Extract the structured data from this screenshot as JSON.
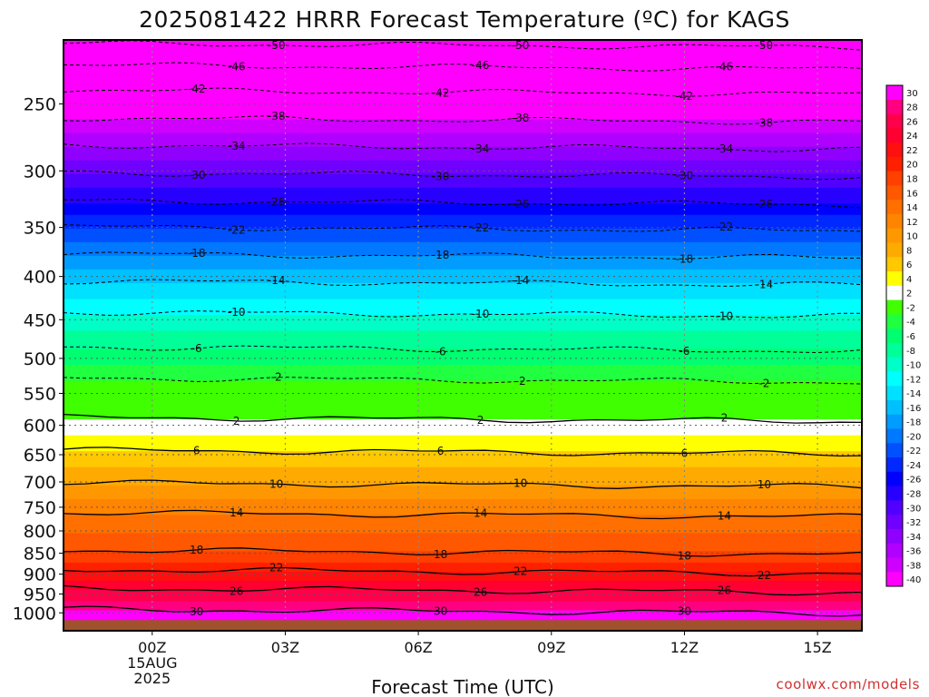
{
  "chart_data": {
    "type": "heatmap",
    "title": "2025081422 HRRR Forecast Temperature (ºC) for KAGS",
    "xlabel": "Forecast Time (UTC)",
    "ylabel": "",
    "x_ticks": [
      {
        "hour": 0,
        "lines": [
          "00Z",
          "15AUG",
          "2025"
        ]
      },
      {
        "hour": 3,
        "lines": [
          "03Z"
        ]
      },
      {
        "hour": 6,
        "lines": [
          "06Z"
        ]
      },
      {
        "hour": 9,
        "lines": [
          "09Z"
        ]
      },
      {
        "hour": 12,
        "lines": [
          "12Z"
        ]
      },
      {
        "hour": 15,
        "lines": [
          "15Z"
        ]
      }
    ],
    "x_range_hours": [
      -2,
      16
    ],
    "y_scale": "log",
    "y_range_hPa": [
      1050,
      210
    ],
    "y_ticks": [
      250,
      300,
      350,
      400,
      450,
      500,
      550,
      600,
      650,
      700,
      750,
      800,
      850,
      900,
      950,
      1000
    ],
    "grid": true,
    "colorbar": {
      "placement": "right",
      "labels": [
        "30",
        "28",
        "26",
        "24",
        "22",
        "20",
        "18",
        "16",
        "14",
        "12",
        "10",
        "8",
        "6",
        "4",
        "2",
        "-2",
        "-4",
        "-6",
        "-8",
        "-10",
        "-12",
        "-14",
        "-16",
        "-18",
        "-20",
        "-22",
        "-24",
        "-26",
        "-28",
        "-30",
        "-32",
        "-34",
        "-36",
        "-38",
        "-40"
      ],
      "colors": [
        "#ff00ff",
        "#ff0080",
        "#ff004a",
        "#ff0030",
        "#ff1010",
        "#ff2000",
        "#ff4000",
        "#ff5800",
        "#ff7000",
        "#ff8400",
        "#ff9800",
        "#ffaa00",
        "#ffc800",
        "#ffff00",
        "#ffffff",
        "#40ff00",
        "#20ff40",
        "#00ff70",
        "#00ff98",
        "#00ffc8",
        "#00ffff",
        "#00e0ff",
        "#00c0ff",
        "#009cff",
        "#0078ff",
        "#0050ff",
        "#0028ff",
        "#0000ff",
        "#2800ff",
        "#5000ff",
        "#7000ff",
        "#9000ff",
        "#b000ff",
        "#d000ff",
        "#ff00ff"
      ]
    },
    "isotherms": [
      {
        "value": 30,
        "pressure_hPa": 995,
        "label": "30"
      },
      {
        "value": 26,
        "pressure_hPa": 940,
        "label": "26"
      },
      {
        "value": 22,
        "pressure_hPa": 893,
        "label": "22"
      },
      {
        "value": 18,
        "pressure_hPa": 847,
        "label": "18"
      },
      {
        "value": 14,
        "pressure_hPa": 765,
        "label": "14"
      },
      {
        "value": 10,
        "pressure_hPa": 705,
        "label": "10"
      },
      {
        "value": 6,
        "pressure_hPa": 645,
        "label": "6"
      },
      {
        "value": 2,
        "pressure_hPa": 590,
        "label": "2"
      },
      {
        "value": -2,
        "pressure_hPa": 530,
        "label": "-2"
      },
      {
        "value": -6,
        "pressure_hPa": 487,
        "label": "-6"
      },
      {
        "value": -10,
        "pressure_hPa": 443,
        "label": "-10"
      },
      {
        "value": -14,
        "pressure_hPa": 407,
        "label": "-14"
      },
      {
        "value": -18,
        "pressure_hPa": 378,
        "label": "-18"
      },
      {
        "value": -22,
        "pressure_hPa": 351,
        "label": "-22"
      },
      {
        "value": -26,
        "pressure_hPa": 327,
        "label": "-26"
      },
      {
        "value": -30,
        "pressure_hPa": 303,
        "label": "-30"
      },
      {
        "value": -34,
        "pressure_hPa": 281,
        "label": "-34"
      },
      {
        "value": -38,
        "pressure_hPa": 261,
        "label": "-38"
      },
      {
        "value": -42,
        "pressure_hPa": 242,
        "label": "-42"
      },
      {
        "value": -46,
        "pressure_hPa": 226,
        "label": "-46"
      },
      {
        "value": -50,
        "pressure_hPa": 213,
        "label": "-50"
      }
    ],
    "ground_color": "#a0522d"
  },
  "credit": "coolwx.com/models"
}
